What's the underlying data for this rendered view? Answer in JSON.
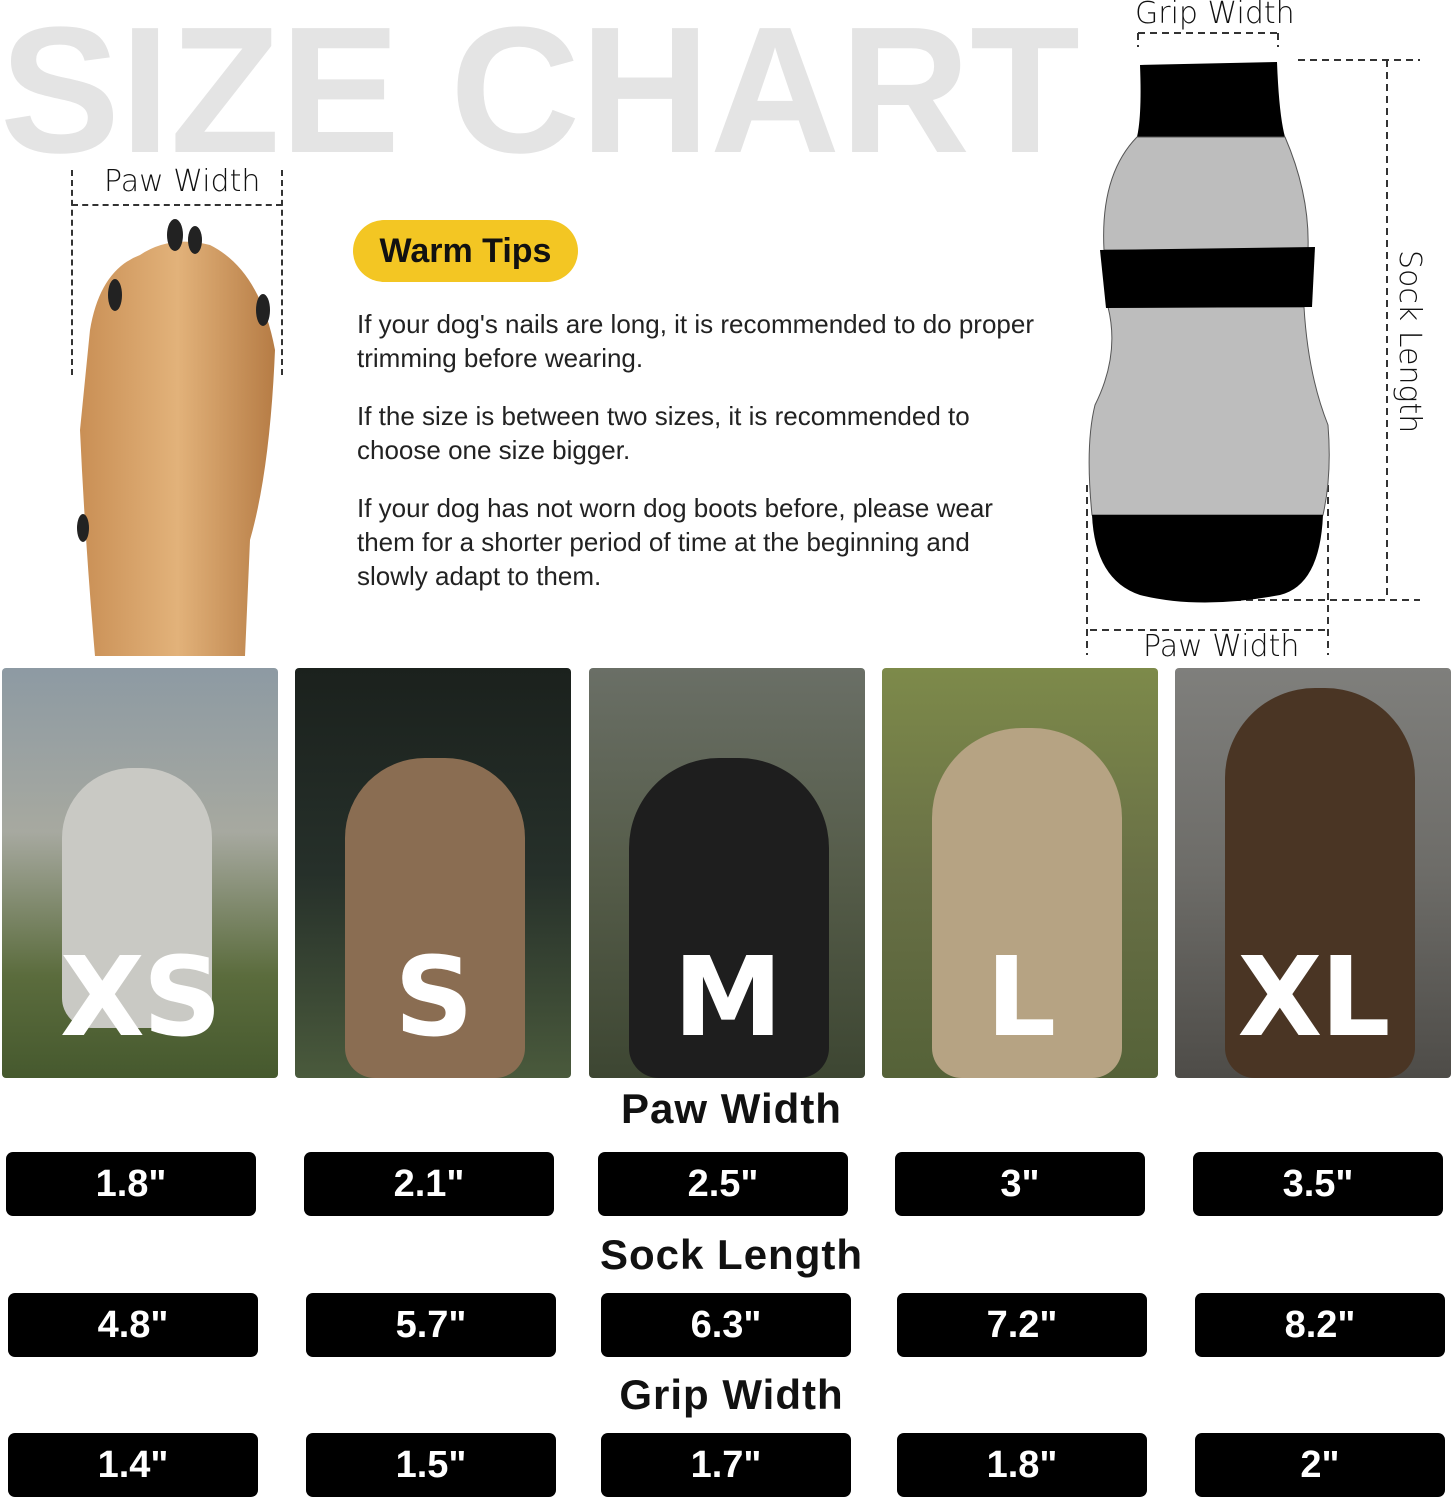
{
  "title": "SIZE CHART",
  "paw_diagram": {
    "label": "Paw Width"
  },
  "sock_diagram": {
    "grip_label": "Grip Width",
    "length_label": "Sock Length",
    "paw_label": "Paw Width"
  },
  "warm_tips": {
    "badge": "Warm Tips",
    "badge_color": "#f3c623",
    "tips": [
      "If your dog's nails are long, it is recommended to do proper trimming before wearing.",
      "If the size is between two sizes, it is recommended to choose one size bigger.",
      "If your dog has not worn dog boots before, please wear them for a shorter period of time at the beginning and slowly adapt to them."
    ]
  },
  "sizes": [
    "XS",
    "S",
    "M",
    "L",
    "XL"
  ],
  "measurements": [
    {
      "heading": "Paw Width",
      "values": [
        "1.8\"",
        "2.1\"",
        "2.5\"",
        "3\"",
        "3.5\""
      ]
    },
    {
      "heading": "Sock Length",
      "values": [
        "4.8\"",
        "5.7\"",
        "6.3\"",
        "7.2\"",
        "8.2\""
      ]
    },
    {
      "heading": "Grip Width",
      "values": [
        "1.4\"",
        "1.5\"",
        "1.7\"",
        "1.8\"",
        "2\""
      ]
    }
  ]
}
